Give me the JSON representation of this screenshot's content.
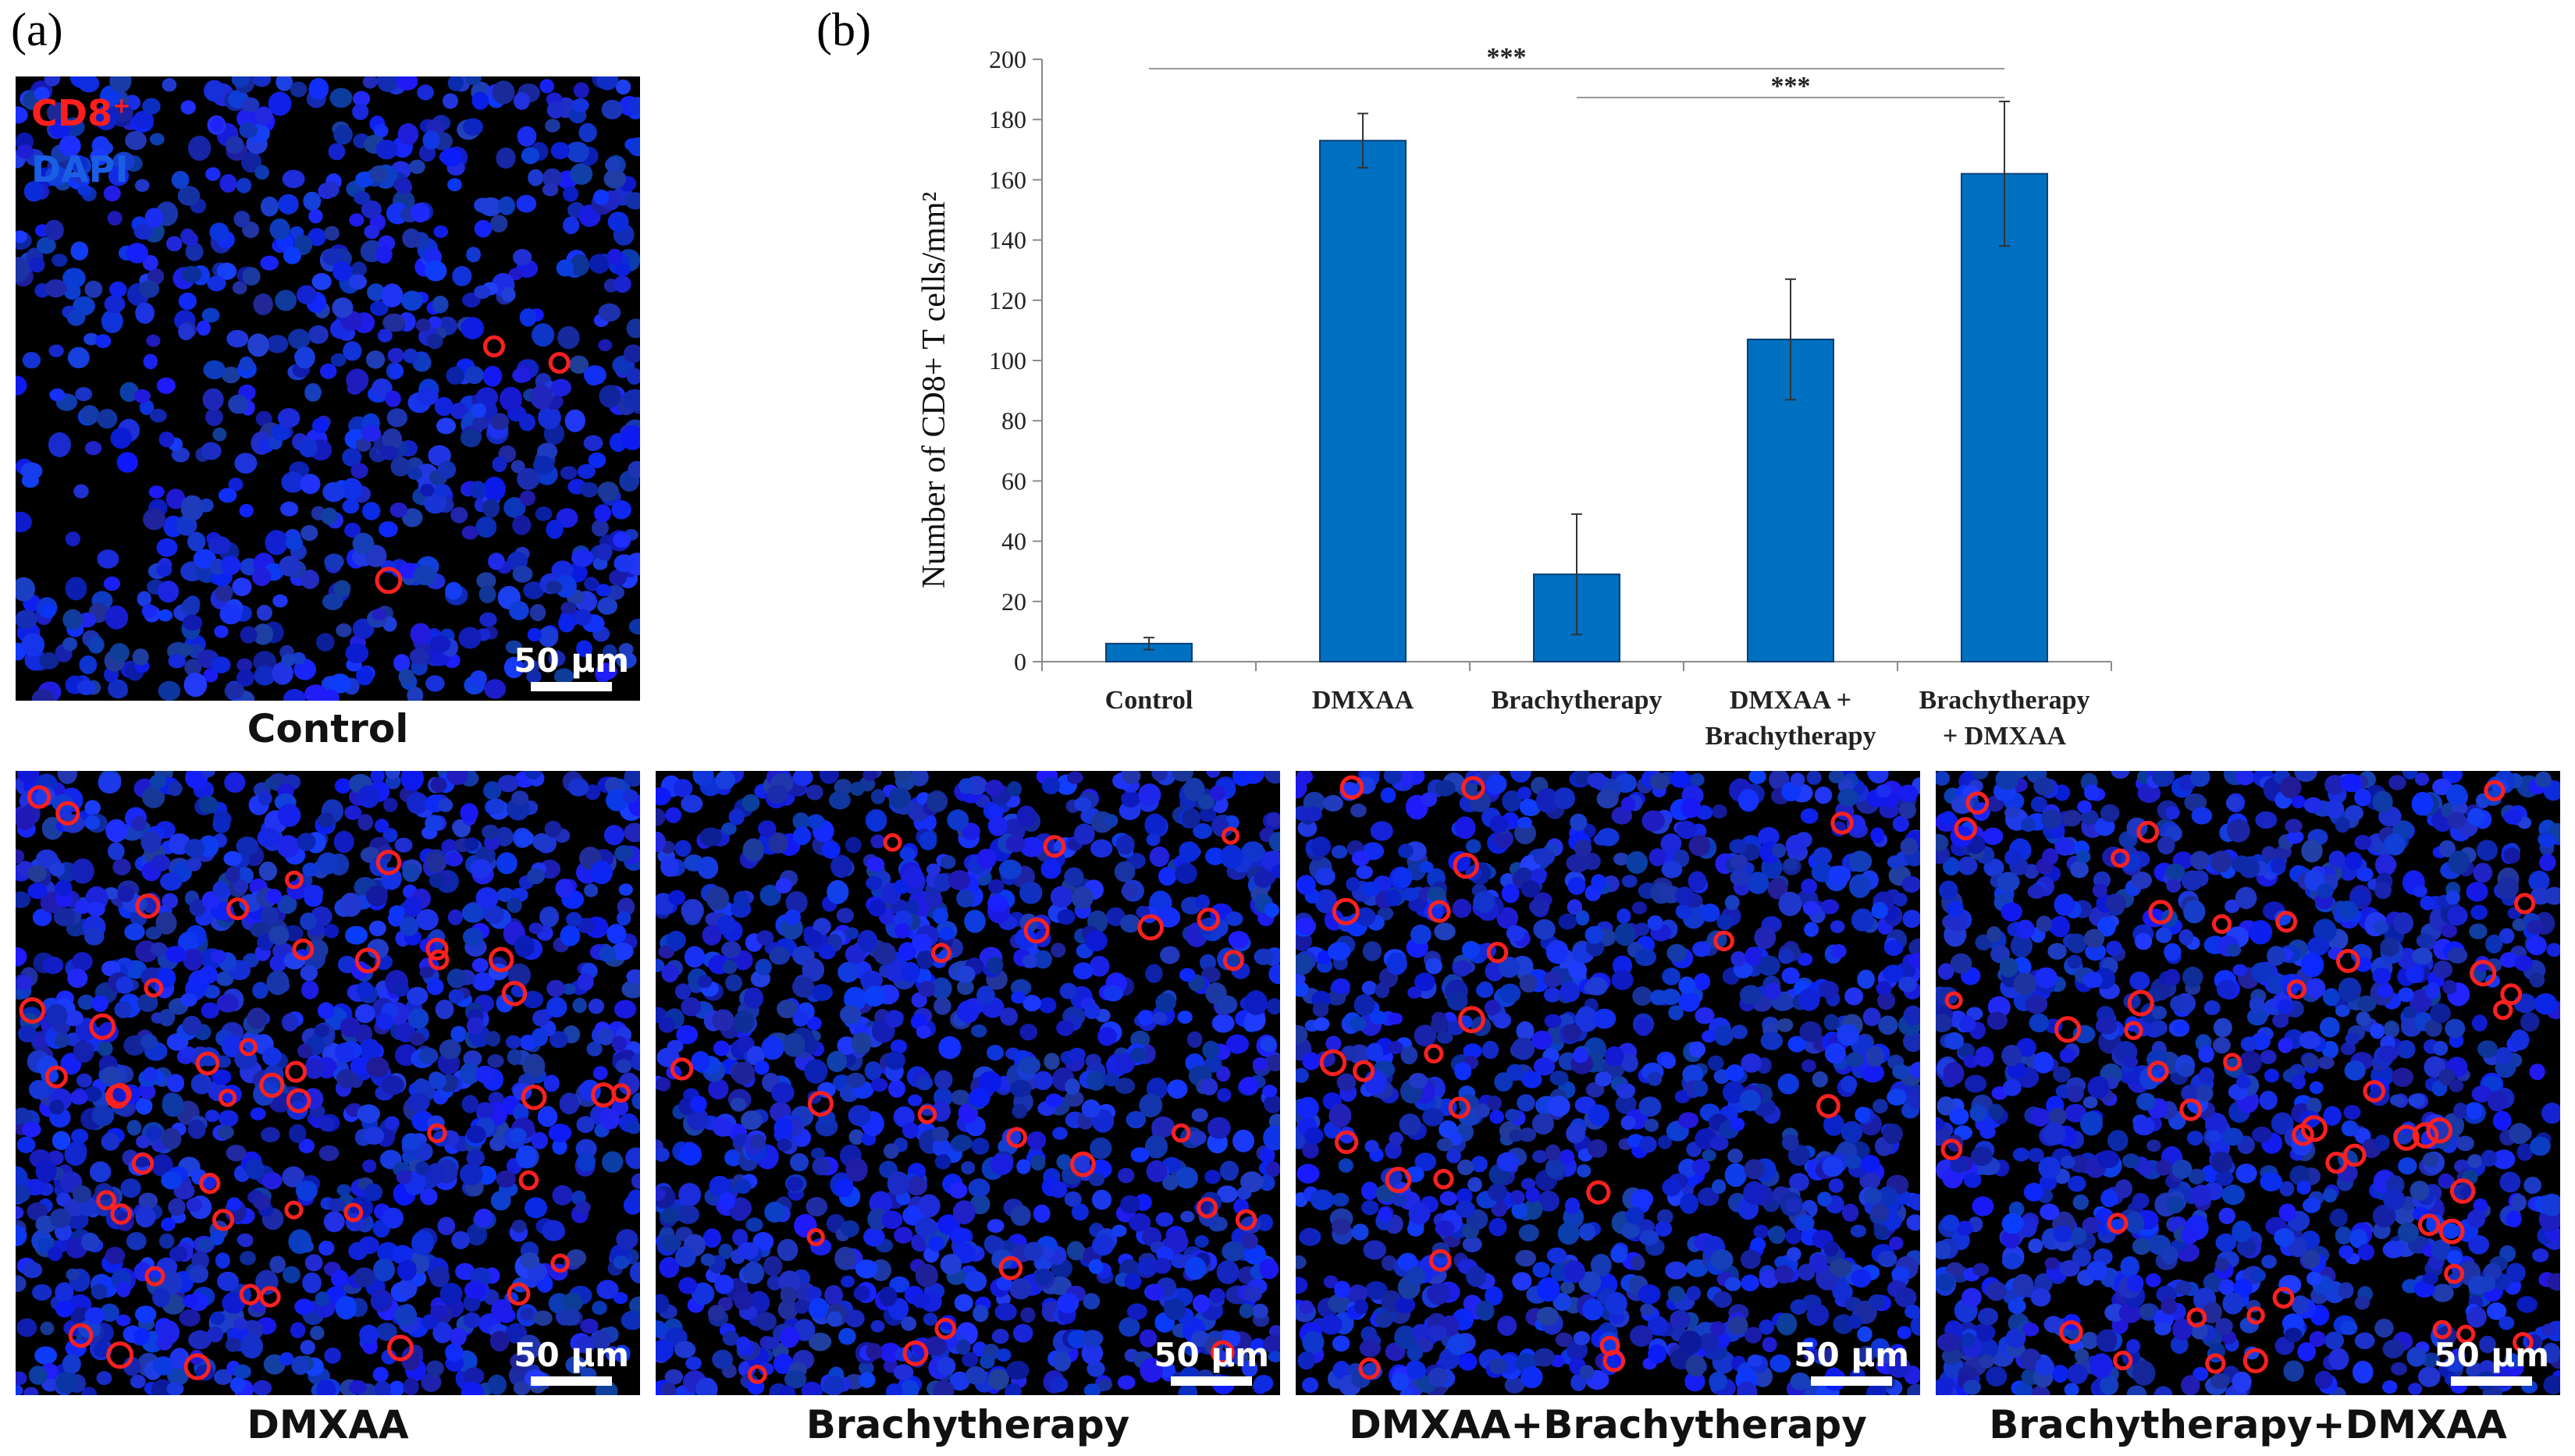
{
  "panel_a_label": "(a)",
  "panel_b_label": "(b)",
  "legend": {
    "marker": "CD8",
    "marker_sup": "+",
    "counterstain": "DAPI"
  },
  "scale_bar_label": "50 µm",
  "colors": {
    "bar": "#0070C0",
    "nuclei": "#1e3cdc",
    "cd8": "#ff2020"
  },
  "micrographs": [
    {
      "caption": "Control",
      "cd8_density": "very low"
    },
    {
      "caption": "DMXAA",
      "cd8_density": "high"
    },
    {
      "caption": "Brachytherapy",
      "cd8_density": "moderate"
    },
    {
      "caption": "DMXAA+Brachytherapy",
      "cd8_density": "moderate"
    },
    {
      "caption": "Brachytherapy+DMXAA",
      "cd8_density": "high"
    }
  ],
  "chart_data": {
    "type": "bar",
    "title": "",
    "ylabel": "Number of CD8+ T cells/mm²",
    "xlabel": "",
    "ylim": [
      0,
      200
    ],
    "yticks": [
      0,
      20,
      40,
      60,
      80,
      100,
      120,
      140,
      160,
      180,
      200
    ],
    "categories": [
      [
        "Control"
      ],
      [
        "DMXAA"
      ],
      [
        "Brachytherapy"
      ],
      [
        "DMXAA +",
        "Brachytherapy"
      ],
      [
        "Brachytherapy",
        "+ DMXAA"
      ]
    ],
    "values": [
      6,
      173,
      29,
      107,
      162
    ],
    "errors": [
      2,
      9,
      20,
      20,
      24
    ],
    "significance": [
      {
        "from": 0,
        "to": 4,
        "label": "***"
      },
      {
        "from": 2,
        "to": 4,
        "label": "***"
      }
    ]
  }
}
